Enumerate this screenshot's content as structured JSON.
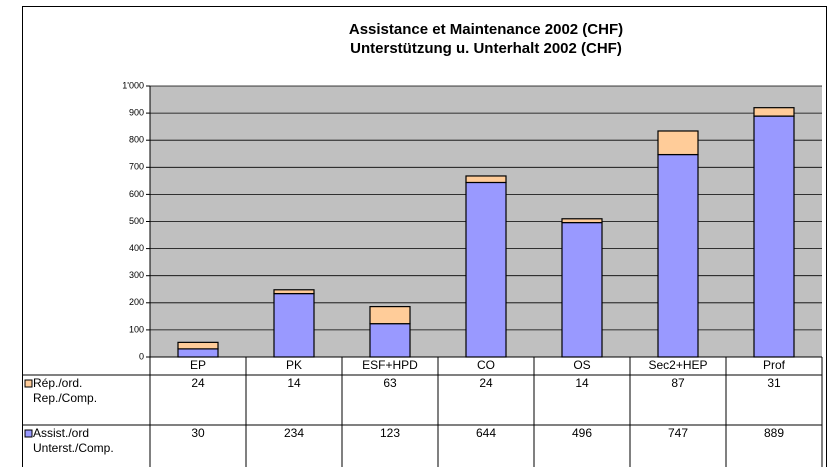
{
  "chart_data": {
    "type": "stacked-bar",
    "title": [
      "Assistance et Maintenance 2002 (CHF)",
      "Unterstützung u. Unterhalt 2002 (CHF)"
    ],
    "categories": [
      "EP",
      "PK",
      "ESF+HPD",
      "CO",
      "OS",
      "Sec2+HEP",
      "Prof"
    ],
    "series": [
      {
        "name": "Rép./ord.\nRep./Comp.",
        "color": "#ffcc99",
        "values": [
          24,
          14,
          63,
          24,
          14,
          87,
          31
        ]
      },
      {
        "name": "Assist./ord\nUnterst./Comp.",
        "color": "#9999ff",
        "values": [
          30,
          234,
          123,
          644,
          496,
          747,
          889
        ]
      }
    ],
    "ylim": [
      0,
      1000
    ],
    "yticks": [
      0,
      100,
      200,
      300,
      400,
      500,
      600,
      700,
      800,
      900,
      {
        "value": 1000,
        "label": "1'000"
      }
    ],
    "grid": true
  }
}
